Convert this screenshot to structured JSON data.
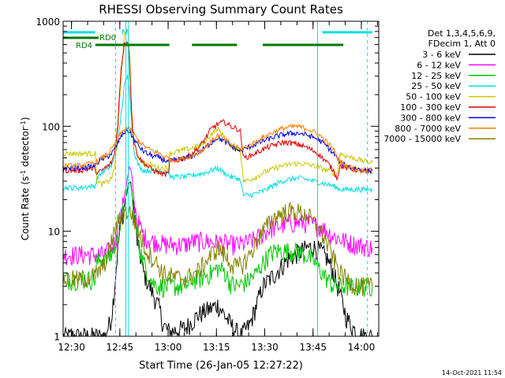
{
  "chart_data": {
    "type": "line",
    "title": "RHESSI Observing Summary Count Rates",
    "xlabel": "Start Time (26-Jan-05 12:27:22)",
    "ylabel_main": "Count Rate (s",
    "ylabel_sup1": "-1",
    "ylabel_mid": " detector",
    "ylabel_sup2": "-1",
    "ylabel_end": ")",
    "x_unit": "minutes since 12:27:22",
    "xlim": [
      0,
      98
    ],
    "ylim": [
      1,
      1000
    ],
    "y_scale": "log",
    "x_ticks": [
      {
        "label": "12:30",
        "at": 2.6
      },
      {
        "label": "12:45",
        "at": 17.6
      },
      {
        "label": "13:00",
        "at": 32.6
      },
      {
        "label": "13:15",
        "at": 47.6
      },
      {
        "label": "13:30",
        "at": 62.6
      },
      {
        "label": "13:45",
        "at": 77.6
      },
      {
        "label": "14:00",
        "at": 92.6
      }
    ],
    "y_ticks": [
      {
        "label": "1",
        "at": 1
      },
      {
        "label": "10",
        "at": 10
      },
      {
        "label": "100",
        "at": 100
      },
      {
        "label": "1000",
        "at": 1000
      }
    ],
    "legend_header": [
      "Det 1,3,4,5,6,9,",
      "FDecim 1, Att 0"
    ],
    "legend_position": "right",
    "series": [
      {
        "name": "3 - 6 keV",
        "color": "#000000",
        "x": [
          0,
          10,
          10.5,
          13,
          15,
          16,
          17,
          18,
          19,
          20,
          20.5,
          21,
          21.5,
          22,
          23,
          25,
          28,
          30,
          31,
          33,
          38,
          42,
          48,
          52,
          55,
          58,
          62,
          66,
          70,
          72,
          74,
          76,
          78,
          80,
          82,
          84,
          86,
          88,
          90,
          92,
          94,
          96
        ],
        "y": [
          1,
          1,
          1,
          1,
          1.5,
          3,
          7,
          12,
          18,
          25,
          30,
          28,
          22,
          15,
          8,
          4,
          2.5,
          1.8,
          1.3,
          1.1,
          1.2,
          1.6,
          2,
          1.3,
          1,
          1.3,
          3,
          4,
          5.5,
          6,
          6.5,
          7,
          7,
          6.5,
          5.5,
          4,
          2.5,
          1.5,
          1.2,
          1,
          1,
          1
        ]
      },
      {
        "name": "6 - 12 keV",
        "color": "#ff00ff",
        "x": [
          0,
          10,
          10.5,
          13,
          15,
          17,
          18,
          19,
          20,
          20.5,
          21,
          21.5,
          22,
          23,
          25,
          28,
          30,
          31,
          33,
          35,
          38,
          40,
          42,
          45,
          48,
          50,
          52,
          55,
          56,
          58,
          60,
          62,
          64,
          66,
          68,
          70,
          72,
          74,
          76,
          78,
          80,
          82,
          84,
          86,
          88,
          90,
          92,
          94,
          96
        ],
        "y": [
          6,
          6,
          6,
          6,
          7,
          9,
          14,
          22,
          32,
          40,
          38,
          30,
          20,
          13,
          9,
          8,
          8,
          7.5,
          7.5,
          7.5,
          7.5,
          8,
          8,
          8,
          7.8,
          7.8,
          7.5,
          7.5,
          7.6,
          8,
          8.5,
          9.5,
          10.5,
          11,
          11.5,
          12,
          12,
          12.2,
          12,
          11.5,
          11,
          10,
          9,
          8.5,
          8,
          7.6,
          7.4,
          7.2,
          7
        ]
      },
      {
        "name": "12 - 25 keV",
        "color": "#00c800",
        "x": [
          0,
          8,
          10,
          10.5,
          12,
          14,
          15,
          16,
          17,
          18,
          19,
          20,
          20.5,
          21,
          21.5,
          22,
          23,
          24,
          25,
          26,
          28,
          30,
          31,
          33,
          35,
          38,
          40,
          42,
          44,
          46,
          48,
          50,
          52,
          54,
          56,
          58,
          60,
          62,
          64,
          66,
          68,
          70,
          72,
          74,
          76,
          78,
          80,
          82,
          84,
          86,
          88,
          90,
          92,
          94,
          96
        ],
        "y": [
          3.5,
          3.5,
          3.5,
          5,
          5.5,
          5.5,
          6,
          7,
          9,
          12,
          18,
          25,
          30,
          28,
          20,
          14,
          9,
          6.5,
          5,
          4.2,
          3.2,
          3,
          3,
          3,
          3,
          3,
          3.5,
          3.5,
          3.8,
          4,
          4.5,
          4.2,
          3.2,
          3,
          3.2,
          3.5,
          4,
          5,
          6,
          6.5,
          6.5,
          6.5,
          6.5,
          6.2,
          5.8,
          5.2,
          4.2,
          3.5,
          3,
          3,
          3,
          3,
          3,
          3,
          3
        ]
      },
      {
        "name": "25 - 50 keV",
        "color": "#00e0e0",
        "x": [
          0,
          5,
          10,
          10.5,
          12,
          14,
          15,
          16,
          17,
          18,
          19,
          20,
          20.5,
          21,
          21.5,
          22,
          23,
          24,
          25,
          26,
          28,
          30,
          31,
          32.8,
          33,
          35,
          38,
          40,
          42,
          44,
          46,
          48,
          50,
          52,
          54,
          55,
          56,
          58,
          60,
          62,
          64,
          66,
          68,
          70,
          72,
          74,
          76,
          78,
          80,
          82,
          84,
          85,
          86,
          88,
          90,
          92,
          94,
          96
        ],
        "y": [
          26,
          26,
          27,
          32,
          36,
          40,
          42,
          50,
          70,
          130,
          240,
          300,
          250,
          150,
          90,
          60,
          45,
          40,
          38,
          38,
          38,
          38,
          37,
          37,
          33,
          33,
          33,
          34,
          35,
          36,
          38,
          40,
          36,
          33,
          32,
          31,
          22,
          22,
          23,
          24,
          26,
          28,
          30,
          31,
          32,
          32,
          31,
          30,
          29,
          28,
          27,
          26,
          25,
          25,
          25,
          25,
          25,
          25
        ]
      },
      {
        "name": "50 - 100 keV",
        "color": "#c8c800",
        "x": [
          0,
          5,
          10,
          10.5,
          12,
          14,
          15,
          16,
          17,
          18,
          19,
          20,
          20.5,
          21,
          21.5,
          22,
          23,
          24,
          25,
          26,
          28,
          30,
          31,
          32.8,
          33,
          35,
          38,
          40,
          42,
          44,
          46,
          48,
          50,
          52,
          54,
          55,
          56,
          58,
          60,
          62,
          64,
          66,
          68,
          70,
          72,
          74,
          76,
          78,
          80,
          82,
          84,
          85,
          86,
          88,
          90,
          92,
          94,
          96
        ],
        "y": [
          55,
          55,
          55,
          30,
          28,
          30,
          32,
          40,
          90,
          300,
          700,
          850,
          600,
          250,
          110,
          70,
          55,
          48,
          45,
          43,
          42,
          40,
          40,
          40,
          55,
          57,
          60,
          62,
          65,
          70,
          85,
          95,
          80,
          65,
          62,
          60,
          30,
          31,
          33,
          36,
          38,
          40,
          42,
          43,
          44,
          44,
          43,
          42,
          40,
          38,
          36,
          35,
          55,
          52,
          50,
          48,
          46,
          45
        ]
      },
      {
        "name": "100 - 300 keV",
        "color": "#e00000",
        "x": [
          0,
          5,
          10,
          10.5,
          12,
          14,
          15,
          16,
          17,
          18,
          19,
          20,
          20.5,
          21,
          21.5,
          22,
          23,
          24,
          25,
          26,
          28,
          30,
          31,
          32.8,
          33,
          35,
          38,
          40,
          42,
          44,
          46,
          48,
          50,
          52,
          54,
          55,
          56,
          58,
          60,
          62,
          64,
          66,
          68,
          70,
          72,
          74,
          76,
          78,
          80,
          82,
          84,
          85,
          86,
          88,
          90,
          92,
          94,
          96
        ],
        "y": [
          38,
          38,
          40,
          35,
          38,
          42,
          45,
          55,
          110,
          350,
          620,
          650,
          500,
          220,
          100,
          70,
          55,
          48,
          45,
          42,
          38,
          36,
          35,
          35,
          45,
          47,
          50,
          55,
          62,
          75,
          95,
          105,
          110,
          100,
          95,
          90,
          50,
          52,
          56,
          60,
          64,
          67,
          70,
          70,
          68,
          66,
          62,
          58,
          52,
          45,
          38,
          32,
          42,
          40,
          39,
          38,
          37,
          36
        ]
      },
      {
        "name": "300 - 800 keV",
        "color": "#0000e0",
        "x": [
          0,
          5,
          10,
          10.5,
          12,
          14,
          15,
          16,
          17,
          18,
          19,
          20,
          21,
          22,
          23,
          24,
          25,
          26,
          28,
          30,
          31,
          32.8,
          33,
          35,
          38,
          40,
          42,
          44,
          46,
          48,
          50,
          52,
          54,
          55,
          56,
          58,
          60,
          62,
          64,
          66,
          68,
          70,
          72,
          74,
          76,
          78,
          80,
          82,
          84,
          85,
          86,
          88,
          90,
          92,
          94,
          96
        ],
        "y": [
          40,
          40,
          42,
          45,
          48,
          52,
          55,
          60,
          70,
          80,
          88,
          92,
          85,
          75,
          68,
          62,
          58,
          55,
          52,
          50,
          48,
          46,
          46,
          48,
          50,
          52,
          56,
          62,
          70,
          78,
          72,
          65,
          60,
          58,
          60,
          64,
          68,
          72,
          76,
          80,
          83,
          85,
          86,
          85,
          82,
          78,
          72,
          64,
          55,
          50,
          45,
          42,
          40,
          39,
          38,
          38
        ]
      },
      {
        "name": "800 - 7000 keV",
        "color": "#ff8000",
        "x": [
          0,
          5,
          10,
          12,
          14,
          15,
          16,
          17,
          18,
          19,
          20,
          21,
          22,
          23,
          24,
          25,
          26,
          28,
          30,
          31,
          32.8,
          33,
          35,
          38,
          40,
          42,
          44,
          46,
          48,
          50,
          52,
          54,
          55,
          56,
          58,
          60,
          62,
          64,
          66,
          68,
          70,
          72,
          74,
          76,
          78,
          80,
          82,
          84,
          85,
          86,
          88,
          90,
          92,
          94,
          96
        ],
        "y": [
          42,
          42,
          45,
          50,
          55,
          60,
          66,
          76,
          86,
          94,
          96,
          92,
          84,
          76,
          70,
          65,
          62,
          58,
          55,
          52,
          50,
          48,
          48,
          50,
          53,
          56,
          62,
          72,
          82,
          76,
          68,
          63,
          60,
          62,
          66,
          72,
          78,
          84,
          90,
          95,
          98,
          100,
          98,
          94,
          88,
          80,
          70,
          60,
          52,
          46,
          42,
          40,
          38,
          38,
          38
        ]
      },
      {
        "name": "7000 - 15000 keV",
        "color": "#808000",
        "x": [
          0,
          5,
          10,
          12,
          14,
          15,
          16,
          17,
          18,
          19,
          20,
          21,
          22,
          23,
          24,
          25,
          26,
          28,
          30,
          31,
          33,
          35,
          38,
          40,
          42,
          44,
          46,
          48,
          50,
          52,
          54,
          56,
          58,
          60,
          62,
          64,
          66,
          68,
          70,
          72,
          74,
          76,
          78,
          80,
          82,
          84,
          86,
          88,
          90,
          92,
          94,
          96
        ],
        "y": [
          3.5,
          3.5,
          3.8,
          4.5,
          6,
          8,
          10,
          12,
          14,
          15,
          15.5,
          15,
          13,
          11,
          9,
          7.5,
          6.5,
          5.5,
          4.5,
          4,
          3.8,
          3.6,
          3.6,
          3.8,
          4.2,
          5,
          6,
          7,
          6,
          5,
          4.5,
          5,
          6,
          8,
          10,
          12,
          14,
          15,
          15.5,
          15.5,
          15,
          14,
          12,
          10,
          7.5,
          5.5,
          4,
          3.5,
          3.2,
          3,
          3,
          3
        ]
      }
    ],
    "annotations": {
      "n_label": "N",
      "rd0_label": "RD0",
      "rd4_label": "RD4",
      "n_segments": [
        [
          0,
          10
        ],
        [
          80.5,
          96
        ]
      ],
      "rd0_segments": [
        [
          0,
          11
        ]
      ],
      "rd4_segments": [
        [
          10,
          33
        ],
        [
          40,
          54
        ],
        [
          62,
          87
        ]
      ],
      "vlines_solid": [
        19.5,
        20.3,
        79
      ],
      "vlines_dashed": [
        16.3,
        94.5
      ]
    }
  },
  "footer_timestamp": "14-Oct-2021 11:54"
}
